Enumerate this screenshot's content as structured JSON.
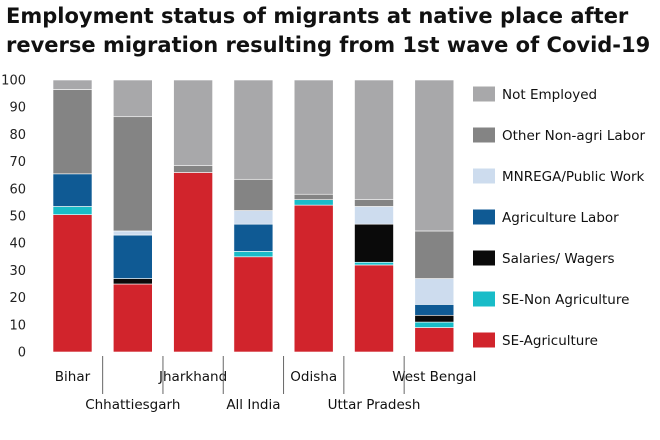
{
  "chart_data": {
    "type": "bar",
    "stacked": true,
    "title": [
      "Employment status of migrants at native place after",
      "reverse migration resulting from 1st wave of Covid-19"
    ],
    "xlabel": "",
    "ylabel": "",
    "ylim": [
      0,
      100
    ],
    "yticks": [
      0,
      10,
      20,
      30,
      40,
      50,
      60,
      70,
      80,
      90,
      100
    ],
    "grid": false,
    "legend_position": "right",
    "categories": [
      "Bihar",
      "Chhattiesgarh",
      "Jharkhand",
      "All India",
      "Odisha",
      "Uttar Pradesh",
      "West Bengal"
    ],
    "series": [
      {
        "name": "SE-Agriculture",
        "color": "#d1242c",
        "values": [
          50.5,
          25,
          66,
          35,
          54,
          32,
          9
        ]
      },
      {
        "name": "SE-Non Agriculture",
        "color": "#19bcc8",
        "values": [
          3,
          0,
          0,
          2,
          2,
          1,
          2
        ]
      },
      {
        "name": "Salaries/ Wagers",
        "color": "#0a0a0a",
        "values": [
          0,
          2,
          0,
          0,
          0,
          14,
          2.5
        ]
      },
      {
        "name": "Agriculture Labor",
        "color": "#0f5a94",
        "values": [
          12,
          16,
          0,
          10,
          0,
          0,
          4
        ]
      },
      {
        "name": "MNREGA/Public Work",
        "color": "#cddcee",
        "values": [
          0,
          1.5,
          0,
          5,
          0,
          6.5,
          9.5
        ]
      },
      {
        "name": "Other Non-agri Labor",
        "color": "#848484",
        "values": [
          31,
          42,
          2.5,
          11.5,
          2,
          2.5,
          17.5
        ]
      },
      {
        "name": "Not Employed",
        "color": "#a8a8aa",
        "values": [
          3.5,
          13.5,
          31.5,
          36.5,
          42,
          44,
          55.5
        ]
      }
    ]
  }
}
